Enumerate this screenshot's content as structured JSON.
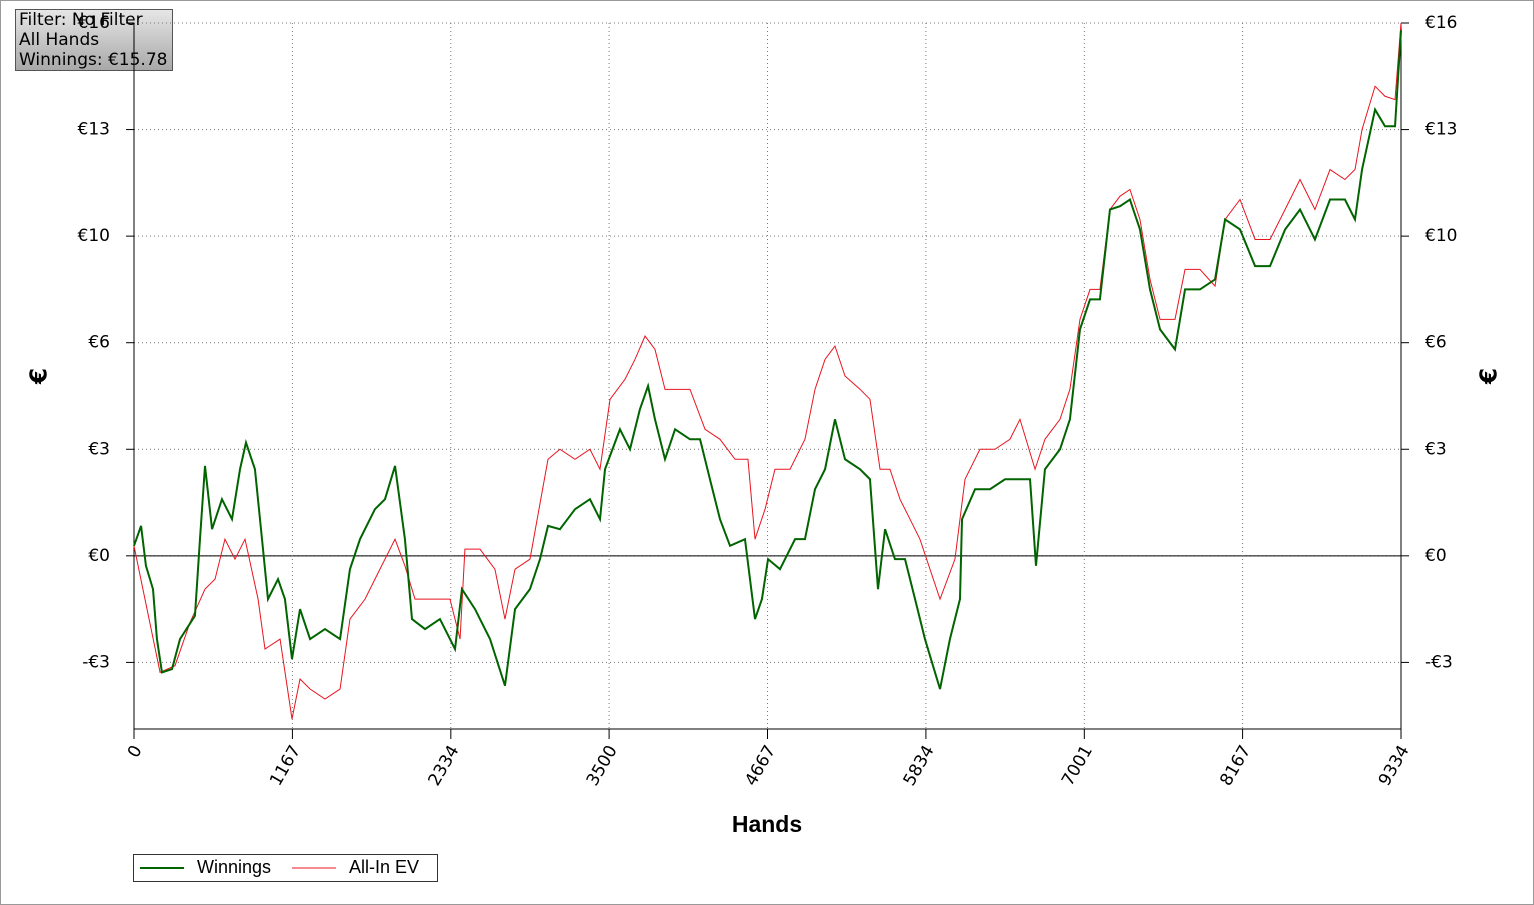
{
  "chart_data": {
    "type": "line",
    "annotations": [
      "Filter: No Filter",
      "All Hands",
      "Winnings: €15.78"
    ],
    "x_label": "Hands",
    "y_label": "€",
    "xlim": [
      0,
      9334
    ],
    "xticks": [
      0,
      1167,
      2334,
      3500,
      4667,
      5834,
      7001,
      8167,
      9334
    ],
    "ylim": [
      -5.2,
      16
    ],
    "yticks": [
      {
        "value": -3.2,
        "label": "-€3"
      },
      {
        "value": 0,
        "label": "€0"
      },
      {
        "value": 3.2,
        "label": "€3"
      },
      {
        "value": 6.4,
        "label": "€6"
      },
      {
        "value": 9.6,
        "label": "€10"
      },
      {
        "value": 12.8,
        "label": "€13"
      },
      {
        "value": 16,
        "label": "€16"
      }
    ],
    "grid": true,
    "legend": "bottom-left",
    "series": [
      {
        "name": "Winnings",
        "color": "#006400",
        "x": [
          0,
          52,
          88,
          140,
          169,
          206,
          280,
          339,
          449,
          486,
          523,
          575,
          648,
          722,
          781,
          825,
          891,
          943,
          987,
          1061,
          1112,
          1164,
          1223,
          1297,
          1407,
          1518,
          1591,
          1665,
          1775,
          1849,
          1923,
          1996,
          2048,
          2144,
          2254,
          2365,
          2416,
          2512,
          2623,
          2733,
          2807,
          2917,
          2991,
          3050,
          3138,
          3249,
          3359,
          3433,
          3470,
          3580,
          3654,
          3727,
          3787,
          3838,
          3912,
          3986,
          4096,
          4170,
          4243,
          4317,
          4391,
          4501,
          4575,
          4626,
          4671,
          4759,
          4870,
          4943,
          5017,
          5091,
          5164,
          5238,
          5349,
          5422,
          5481,
          5533,
          5606,
          5680,
          5754,
          5827,
          5938,
          6011,
          6085,
          6100,
          6196,
          6306,
          6417,
          6527,
          6601,
          6645,
          6711,
          6822,
          6895,
          6969,
          7043,
          7116,
          7190,
          7264,
          7337,
          7411,
          7485,
          7559,
          7669,
          7743,
          7853,
          7964,
          8038,
          8148,
          8259,
          8369,
          8480,
          8590,
          8700,
          8811,
          8921,
          8995,
          9047,
          9143,
          9216,
          9290,
          9334
        ],
        "values": [
          0.3,
          0.9,
          -0.3,
          -1.0,
          -2.5,
          -3.5,
          -3.4,
          -2.5,
          -1.8,
          0.5,
          2.7,
          0.8,
          1.7,
          1.1,
          2.6,
          3.4,
          2.6,
          0.5,
          -1.3,
          -0.7,
          -1.3,
          -3.1,
          -1.6,
          -2.5,
          -2.2,
          -2.5,
          -0.4,
          0.5,
          1.4,
          1.7,
          2.7,
          0.5,
          -1.9,
          -2.2,
          -1.9,
          -2.8,
          -1.0,
          -1.6,
          -2.5,
          -3.9,
          -1.6,
          -1.0,
          -0.1,
          0.9,
          0.8,
          1.4,
          1.7,
          1.1,
          2.6,
          3.8,
          3.2,
          4.4,
          5.1,
          4.1,
          2.9,
          3.8,
          3.5,
          3.5,
          2.3,
          1.1,
          0.3,
          0.5,
          -1.9,
          -1.3,
          -0.1,
          -0.4,
          0.5,
          0.5,
          2.0,
          2.6,
          4.1,
          2.9,
          2.6,
          2.3,
          -1.0,
          0.8,
          -0.1,
          -0.1,
          -1.3,
          -2.5,
          -4.0,
          -2.5,
          -1.3,
          1.1,
          2.0,
          2.0,
          2.3,
          2.3,
          2.3,
          -0.3,
          2.6,
          3.2,
          4.1,
          6.8,
          7.7,
          7.7,
          10.4,
          10.5,
          10.7,
          9.8,
          8.0,
          6.8,
          6.2,
          8.0,
          8.0,
          8.3,
          10.1,
          9.8,
          8.7,
          8.7,
          9.8,
          10.4,
          9.5,
          10.7,
          10.7,
          10.1,
          11.6,
          13.4,
          12.9,
          12.9,
          15.78
        ]
      },
      {
        "name": "All-In EV",
        "color": "#e8141e",
        "x": [
          0,
          192,
          302,
          413,
          523,
          597,
          670,
          744,
          818,
          914,
          965,
          1076,
          1164,
          1223,
          1297,
          1407,
          1518,
          1591,
          1702,
          1812,
          1923,
          1996,
          2070,
          2181,
          2328,
          2402,
          2438,
          2549,
          2659,
          2733,
          2807,
          2917,
          3050,
          3138,
          3249,
          3359,
          3433,
          3507,
          3617,
          3691,
          3765,
          3838,
          3912,
          3986,
          4096,
          4207,
          4317,
          4428,
          4523,
          4575,
          4649,
          4722,
          4833,
          4943,
          5017,
          5091,
          5164,
          5238,
          5349,
          5422,
          5496,
          5569,
          5643,
          5717,
          5790,
          5864,
          5938,
          6048,
          6122,
          6232,
          6343,
          6453,
          6527,
          6638,
          6711,
          6822,
          6895,
          6969,
          7043,
          7116,
          7190,
          7264,
          7337,
          7411,
          7485,
          7559,
          7669,
          7743,
          7853,
          7964,
          8038,
          8148,
          8259,
          8369,
          8480,
          8590,
          8700,
          8811,
          8921,
          8995,
          9047,
          9143,
          9216,
          9290,
          9334
        ],
        "values": [
          0.3,
          -3.5,
          -3.3,
          -2.0,
          -1.0,
          -0.7,
          0.5,
          -0.1,
          0.5,
          -1.3,
          -2.8,
          -2.5,
          -4.9,
          -3.7,
          -4.0,
          -4.3,
          -4.0,
          -1.9,
          -1.3,
          -0.4,
          0.5,
          -0.3,
          -1.3,
          -1.3,
          -1.3,
          -2.5,
          0.2,
          0.2,
          -0.4,
          -1.9,
          -0.4,
          -0.1,
          2.9,
          3.2,
          2.9,
          3.2,
          2.6,
          4.7,
          5.3,
          5.9,
          6.6,
          6.2,
          5.0,
          5.0,
          5.0,
          3.8,
          3.5,
          2.9,
          2.9,
          0.5,
          1.4,
          2.6,
          2.6,
          3.5,
          5.0,
          5.9,
          6.3,
          5.4,
          5.0,
          4.7,
          2.6,
          2.6,
          1.7,
          1.1,
          0.5,
          -0.4,
          -1.3,
          -0.1,
          2.3,
          3.2,
          3.2,
          3.5,
          4.1,
          2.6,
          3.5,
          4.1,
          5.0,
          7.1,
          8.0,
          8.0,
          10.4,
          10.8,
          11.0,
          10.1,
          8.3,
          7.1,
          7.1,
          8.6,
          8.6,
          8.1,
          10.1,
          10.7,
          9.5,
          9.5,
          10.4,
          11.3,
          10.4,
          11.6,
          11.3,
          11.6,
          12.8,
          14.1,
          13.8,
          13.7,
          16.0
        ]
      }
    ]
  }
}
